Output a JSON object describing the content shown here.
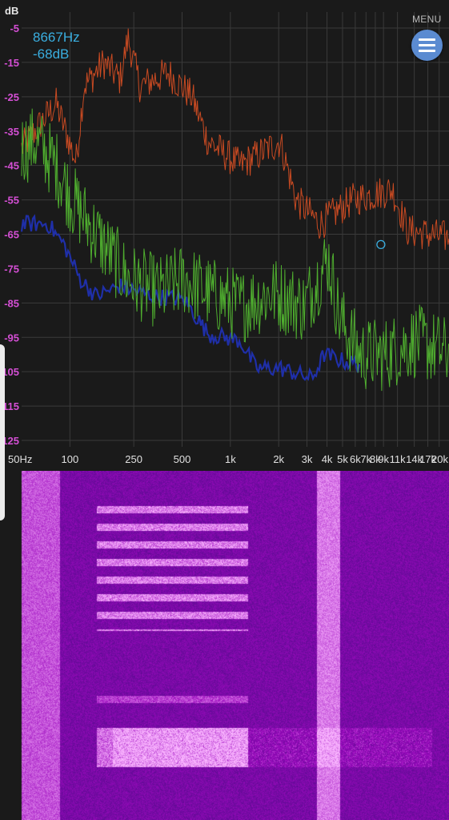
{
  "analyzer": {
    "db_axis_label": "dB",
    "y_ticks": [
      "-5",
      "-15",
      "-25",
      "-35",
      "-45",
      "-55",
      "-65",
      "-75",
      "-85",
      "-95",
      "-105",
      "-115",
      "-125"
    ],
    "x_ticks": [
      "50Hz",
      "100",
      "250",
      "500",
      "1k",
      "2k",
      "3k",
      "4k",
      "5k",
      "6k",
      "7k",
      "8k",
      "9k",
      "11k",
      "14k",
      "17k",
      "20k"
    ],
    "readout": {
      "frequency": "8667Hz",
      "level": "-68dB"
    },
    "cursor": {
      "frequency_hz": 8667,
      "level_db": -68
    },
    "colors": {
      "peak": "#c84a22",
      "spectrum": "#4fae2f",
      "average": "#1f2fa8",
      "readout": "#3aaee0",
      "grid": "#3a3a3a"
    }
  },
  "menu": {
    "label": "MENU",
    "icon": "hamburger-icon"
  },
  "spectrogram": {
    "palette": [
      "#2a0b6e",
      "#6a1fb0",
      "#c050e8",
      "#f2c8ff"
    ]
  }
}
